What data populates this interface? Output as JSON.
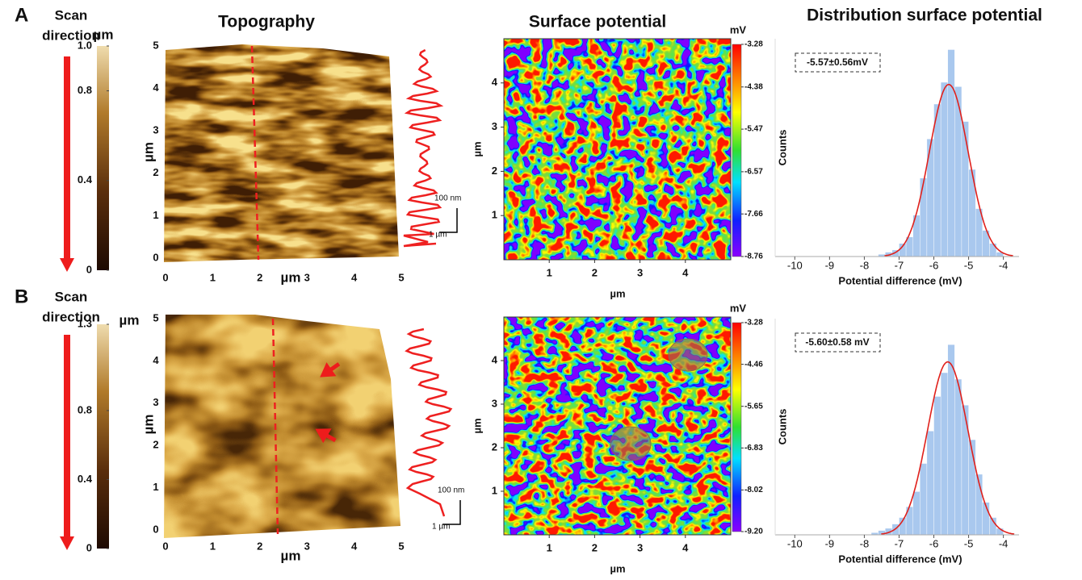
{
  "headers": {
    "topography": "Topography",
    "surface_potential": "Surface potential",
    "distribution": "Distribution surface potential"
  },
  "panels": [
    {
      "label": "A",
      "scan_direction": [
        "Scan",
        "direction"
      ],
      "topography": {
        "colorbar_unit": "µm",
        "colorbar_lim": [
          0,
          1.0
        ],
        "colorbar_ticks": [
          {
            "value": 1.0,
            "label": "1.0"
          },
          0.8,
          0.4,
          0
        ],
        "xlim": [
          0,
          5
        ],
        "xticks": [
          0,
          1,
          2,
          3,
          4,
          5
        ],
        "ylim": [
          0,
          5
        ],
        "yticks": [
          0,
          1,
          2,
          3,
          4,
          5
        ],
        "x_label": "µm",
        "y_label": "µm",
        "profile_scale": {
          "vertical": "100 nm",
          "horizontal": "1 µm"
        }
      },
      "surface_potential": {
        "colorbar_unit": "mV",
        "colorbar_lim": [
          -8.76,
          -3.28
        ],
        "colorbar_ticks": [
          -3.28,
          -4.38,
          -5.47,
          -6.57,
          -7.66,
          -8.76
        ],
        "xlim": [
          0,
          5
        ],
        "xticks": [
          1,
          2,
          3,
          4
        ],
        "ylim": [
          0,
          5
        ],
        "yticks": [
          1,
          2,
          3,
          4
        ],
        "x_label": "µm",
        "y_label": "µm"
      },
      "histogram": {
        "type": "histogram",
        "annotation": "-5.57±0.56mV",
        "x_label": "Potential difference (mV)",
        "y_label": "Counts",
        "xlim": [
          -10.1,
          -3.55
        ],
        "xticks": [
          -10,
          -9,
          -8,
          -7,
          -6,
          -5,
          -4
        ],
        "ylim": [
          0,
          100
        ],
        "color": "#a9c8ee",
        "bins": [
          -7.6,
          -7.4,
          -7.2,
          -7.0,
          -6.8,
          -6.6,
          -6.4,
          -6.2,
          -6.0,
          -5.8,
          -5.6,
          -5.4,
          -5.2,
          -5.0,
          -4.8,
          -4.6,
          -4.4,
          -4.2,
          -4.0
        ],
        "counts": [
          1,
          2,
          3,
          6,
          9,
          19,
          36,
          54,
          70,
          80,
          95,
          78,
          62,
          40,
          22,
          12,
          6,
          2
        ],
        "fit": {
          "mean": -5.57,
          "sd": 0.56,
          "peak": 79,
          "color": "#e0201b"
        }
      }
    },
    {
      "label": "B",
      "scan_direction": [
        "Scan",
        "direction"
      ],
      "topography": {
        "colorbar_unit": "µm",
        "colorbar_lim": [
          0,
          1.3
        ],
        "colorbar_ticks": [
          1.3,
          0.8,
          0.4,
          0
        ],
        "xlim": [
          0,
          5
        ],
        "xticks": [
          0,
          1,
          2,
          3,
          4,
          5
        ],
        "ylim": [
          0,
          5
        ],
        "yticks": [
          0,
          1,
          2,
          3,
          4,
          5
        ],
        "x_label": "µm",
        "y_label": "µm",
        "profile_scale": {
          "vertical": "100 nm",
          "horizontal": "1 µm"
        }
      },
      "surface_potential": {
        "colorbar_unit": "mV",
        "colorbar_lim": [
          -9.2,
          -3.28
        ],
        "colorbar_ticks": [
          -3.28,
          -4.46,
          -5.65,
          -6.83,
          -8.02,
          {
            "value": -9.2,
            "label": "-9.20"
          }
        ],
        "xlim": [
          0,
          5
        ],
        "xticks": [
          1,
          2,
          3,
          4
        ],
        "ylim": [
          0,
          5
        ],
        "yticks": [
          1,
          2,
          3,
          4
        ],
        "x_label": "µm",
        "y_label": "µm"
      },
      "histogram": {
        "type": "histogram",
        "annotation": "-5.60±0.58 mV",
        "x_label": "Potential difference (mV)",
        "y_label": "Counts",
        "xlim": [
          -10.1,
          -3.55
        ],
        "xticks": [
          -10,
          -9,
          -8,
          -7,
          -6,
          -5,
          -4
        ],
        "ylim": [
          0,
          100
        ],
        "color": "#a9c8ee",
        "bins": [
          -7.8,
          -7.6,
          -7.4,
          -7.2,
          -7.0,
          -6.8,
          -6.6,
          -6.4,
          -6.2,
          -6.0,
          -5.8,
          -5.6,
          -5.4,
          -5.2,
          -5.0,
          -4.8,
          -4.6,
          -4.4,
          -4.2,
          -4.0
        ],
        "counts": [
          1,
          2,
          3,
          5,
          8,
          13,
          20,
          33,
          48,
          64,
          75,
          88,
          72,
          60,
          44,
          28,
          15,
          8,
          3
        ],
        "fit": {
          "mean": -5.6,
          "sd": 0.58,
          "peak": 80,
          "color": "#e0201b"
        }
      }
    }
  ]
}
